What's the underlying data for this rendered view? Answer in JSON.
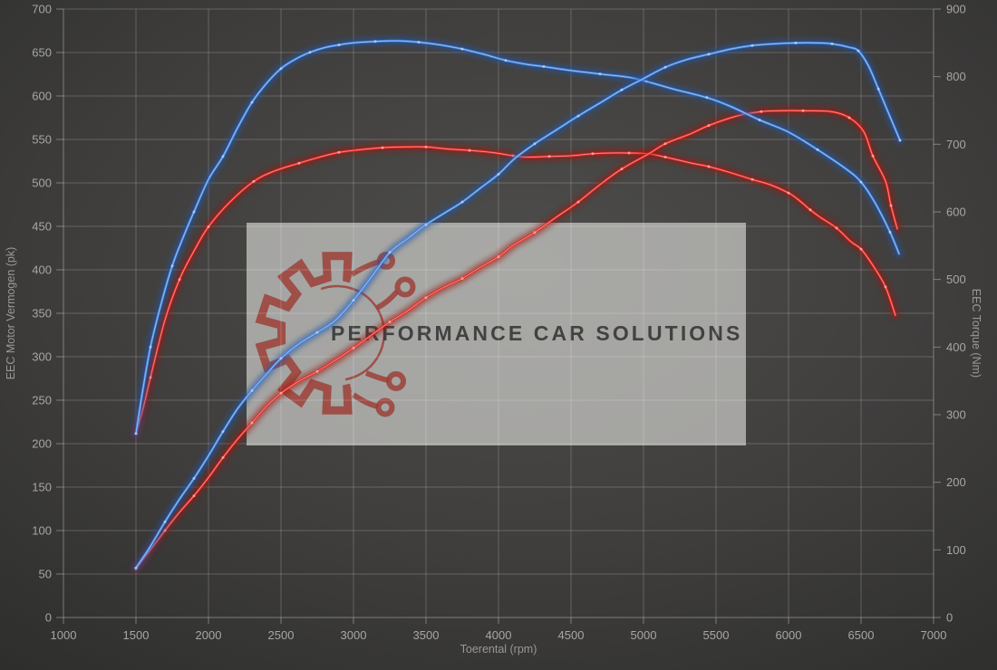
{
  "chart_data": {
    "type": "line",
    "title": "",
    "xlabel": "Toerental (rpm)",
    "ylabel_left": "EEC Motor Vermogen (pk)",
    "ylabel_right": "EEC Torque (Nm)",
    "x_range": [
      1000,
      7000
    ],
    "x_tick_step": 500,
    "y_left_range": [
      0,
      700
    ],
    "y_left_tick_step": 50,
    "y_right_range": [
      0,
      900
    ],
    "y_right_tick_step": 100,
    "grid": true,
    "legend_position": "none",
    "watermark": {
      "text": "PERFORMANCE CAR SOLUTIONS"
    },
    "series": [
      {
        "name": "torque-red",
        "axis": "right",
        "unit": "Nm",
        "color": "#e32421",
        "glow": "#9c1210",
        "core": "#ffb4aa",
        "points": [
          [
            1500,
            272
          ],
          [
            1550,
            310
          ],
          [
            1600,
            355
          ],
          [
            1700,
            440
          ],
          [
            1800,
            500
          ],
          [
            1900,
            542
          ],
          [
            2000,
            578
          ],
          [
            2150,
            615
          ],
          [
            2312,
            645
          ],
          [
            2450,
            660
          ],
          [
            2625,
            672
          ],
          [
            2750,
            680
          ],
          [
            2900,
            688
          ],
          [
            3050,
            692
          ],
          [
            3200,
            695
          ],
          [
            3350,
            696
          ],
          [
            3500,
            696
          ],
          [
            3650,
            693
          ],
          [
            3800,
            691
          ],
          [
            3950,
            688
          ],
          [
            4100,
            683
          ],
          [
            4187,
            681
          ],
          [
            4350,
            682
          ],
          [
            4500,
            683
          ],
          [
            4650,
            686
          ],
          [
            4769,
            687
          ],
          [
            4900,
            687
          ],
          [
            5031,
            686
          ],
          [
            5150,
            681
          ],
          [
            5331,
            672
          ],
          [
            5450,
            667
          ],
          [
            5600,
            658
          ],
          [
            5750,
            648
          ],
          [
            5875,
            640
          ],
          [
            6000,
            628
          ],
          [
            6062,
            619
          ],
          [
            6150,
            603
          ],
          [
            6219,
            592
          ],
          [
            6331,
            576
          ],
          [
            6430,
            556
          ],
          [
            6500,
            545
          ],
          [
            6581,
            521
          ],
          [
            6669,
            489
          ],
          [
            6737,
            447
          ]
        ]
      },
      {
        "name": "power-red",
        "axis": "left",
        "unit": "pk",
        "color": "#e32421",
        "glow": "#9c1210",
        "core": "#ffb4aa",
        "points": [
          [
            1500,
            56
          ],
          [
            1600,
            78
          ],
          [
            1700,
            100
          ],
          [
            1800,
            121
          ],
          [
            1900,
            140
          ],
          [
            2000,
            161
          ],
          [
            2100,
            184
          ],
          [
            2200,
            205
          ],
          [
            2300,
            224
          ],
          [
            2400,
            243
          ],
          [
            2500,
            258
          ],
          [
            2625,
            272
          ],
          [
            2750,
            283
          ],
          [
            2875,
            296
          ],
          [
            3000,
            310
          ],
          [
            3125,
            325
          ],
          [
            3250,
            340
          ],
          [
            3375,
            353
          ],
          [
            3500,
            368
          ],
          [
            3625,
            380
          ],
          [
            3750,
            390
          ],
          [
            3875,
            403
          ],
          [
            4000,
            415
          ],
          [
            4100,
            428
          ],
          [
            4250,
            443
          ],
          [
            4394,
            460
          ],
          [
            4550,
            478
          ],
          [
            4700,
            498
          ],
          [
            4850,
            516
          ],
          [
            5031,
            533
          ],
          [
            5150,
            545
          ],
          [
            5331,
            557
          ],
          [
            5450,
            566
          ],
          [
            5644,
            577
          ],
          [
            5812,
            582
          ],
          [
            5950,
            583
          ],
          [
            6100,
            583
          ],
          [
            6294,
            582
          ],
          [
            6419,
            575
          ],
          [
            6519,
            559
          ],
          [
            6581,
            531
          ],
          [
            6669,
            502
          ],
          [
            6706,
            474
          ],
          [
            6750,
            447
          ]
        ]
      },
      {
        "name": "torque-blue",
        "axis": "right",
        "unit": "Nm",
        "color": "#3f82e0",
        "glow": "#2456a8",
        "core": "#bcd6fa",
        "points": [
          [
            1500,
            272
          ],
          [
            1550,
            340
          ],
          [
            1600,
            400
          ],
          [
            1675,
            465
          ],
          [
            1750,
            520
          ],
          [
            1825,
            562
          ],
          [
            1900,
            600
          ],
          [
            2000,
            648
          ],
          [
            2100,
            682
          ],
          [
            2200,
            724
          ],
          [
            2300,
            762
          ],
          [
            2400,
            790
          ],
          [
            2500,
            812
          ],
          [
            2600,
            826
          ],
          [
            2700,
            836
          ],
          [
            2800,
            843
          ],
          [
            2900,
            847
          ],
          [
            3000,
            850
          ],
          [
            3150,
            852
          ],
          [
            3300,
            853
          ],
          [
            3450,
            851
          ],
          [
            3600,
            847
          ],
          [
            3750,
            841
          ],
          [
            3900,
            833
          ],
          [
            4050,
            824
          ],
          [
            4200,
            818
          ],
          [
            4312,
            815
          ],
          [
            4500,
            809
          ],
          [
            4700,
            804
          ],
          [
            4900,
            799
          ],
          [
            5019,
            793
          ],
          [
            5200,
            782
          ],
          [
            5437,
            769
          ],
          [
            5600,
            756
          ],
          [
            5800,
            736
          ],
          [
            6000,
            718
          ],
          [
            6200,
            692
          ],
          [
            6400,
            663
          ],
          [
            6500,
            644
          ],
          [
            6600,
            612
          ],
          [
            6700,
            570
          ],
          [
            6762,
            538
          ]
        ]
      },
      {
        "name": "power-blue",
        "axis": "left",
        "unit": "pk",
        "color": "#3f82e0",
        "glow": "#2456a8",
        "core": "#bcd6fa",
        "points": [
          [
            1500,
            57
          ],
          [
            1600,
            82
          ],
          [
            1700,
            110
          ],
          [
            1800,
            136
          ],
          [
            1900,
            160
          ],
          [
            2000,
            186
          ],
          [
            2100,
            214
          ],
          [
            2200,
            240
          ],
          [
            2300,
            261
          ],
          [
            2400,
            280
          ],
          [
            2500,
            298
          ],
          [
            2625,
            315
          ],
          [
            2750,
            328
          ],
          [
            2875,
            342
          ],
          [
            3000,
            365
          ],
          [
            3125,
            392
          ],
          [
            3250,
            420
          ],
          [
            3375,
            436
          ],
          [
            3500,
            452
          ],
          [
            3625,
            465
          ],
          [
            3750,
            478
          ],
          [
            3875,
            494
          ],
          [
            4000,
            510
          ],
          [
            4112,
            528
          ],
          [
            4250,
            545
          ],
          [
            4400,
            561
          ],
          [
            4550,
            577
          ],
          [
            4700,
            592
          ],
          [
            4850,
            607
          ],
          [
            5000,
            620
          ],
          [
            5150,
            633
          ],
          [
            5300,
            642
          ],
          [
            5450,
            648
          ],
          [
            5600,
            654
          ],
          [
            5750,
            658
          ],
          [
            5900,
            660
          ],
          [
            6050,
            661
          ],
          [
            6200,
            661
          ],
          [
            6300,
            660
          ],
          [
            6419,
            656
          ],
          [
            6481,
            652
          ],
          [
            6550,
            635
          ],
          [
            6620,
            608
          ],
          [
            6700,
            576
          ],
          [
            6769,
            549
          ]
        ]
      }
    ]
  }
}
